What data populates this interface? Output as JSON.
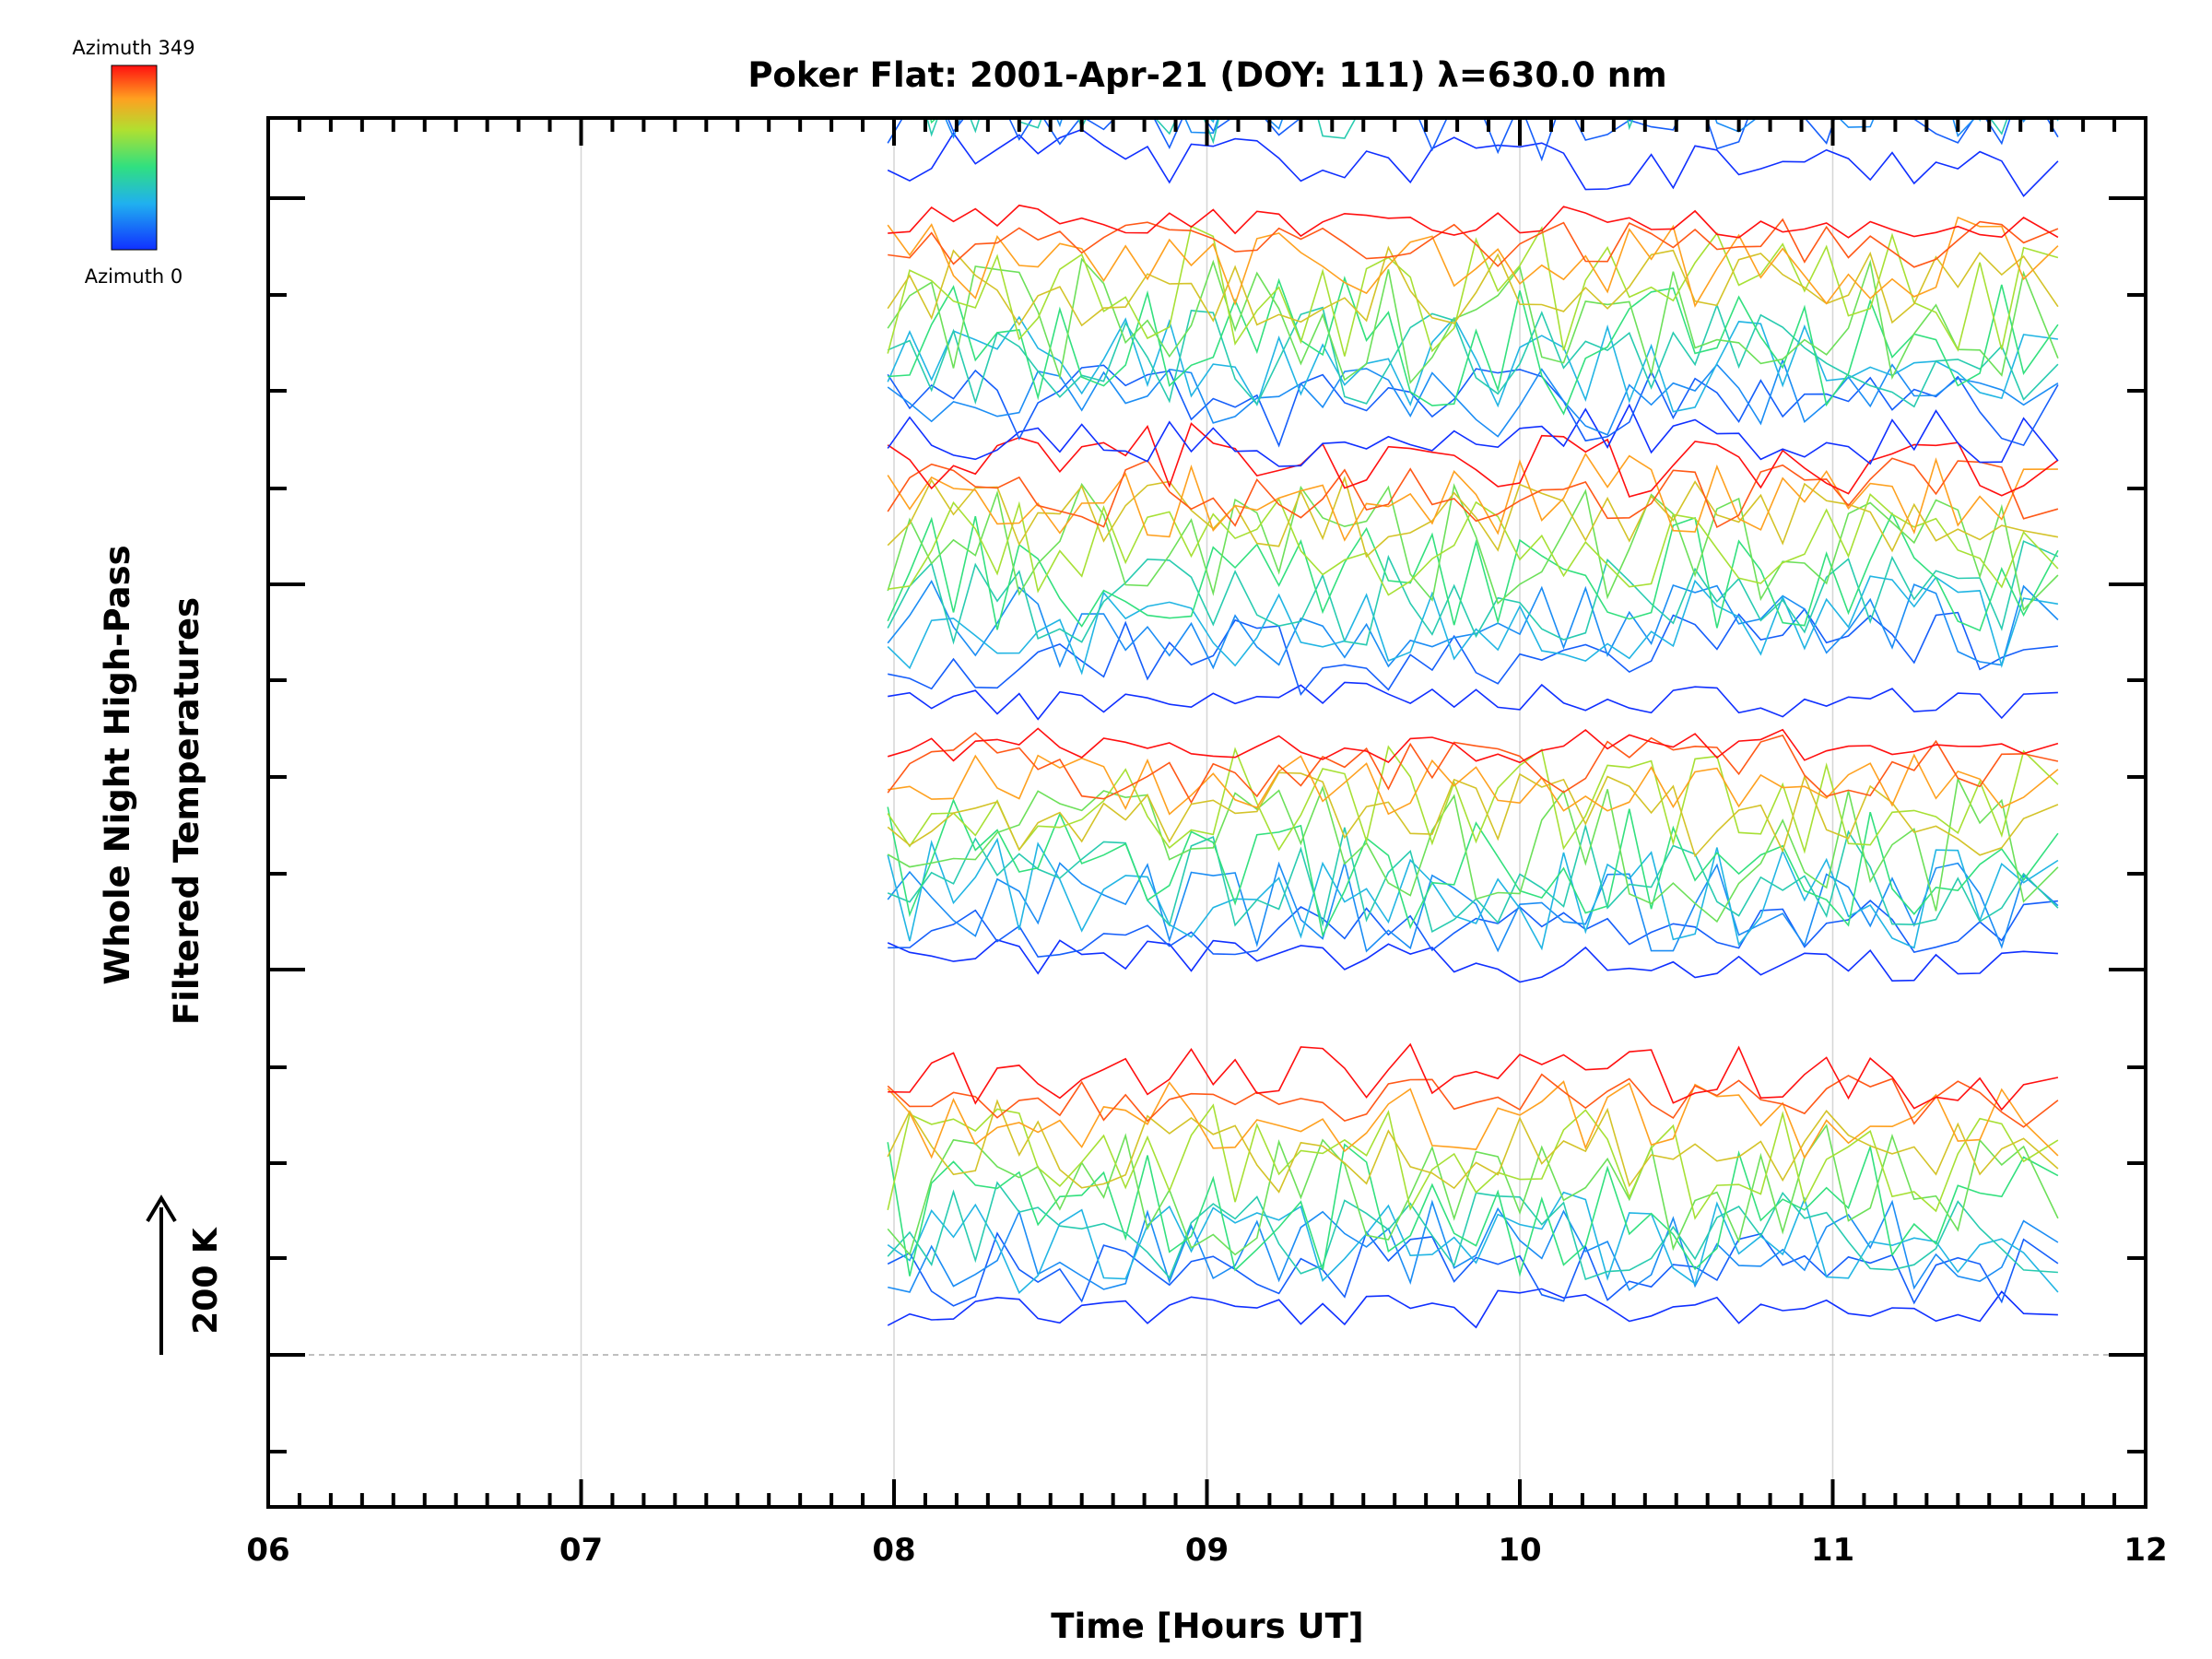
{
  "chart_data": {
    "type": "line",
    "title": "Poker Flat: 2001-Apr-21 (DOY: 111) λ=630.0 nm",
    "xlabel": "Time [Hours UT]",
    "ylabel": [
      "Whole Night High-Pass",
      "Filtered Temperatures"
    ],
    "scale_label": "200 K",
    "xlim": [
      6,
      12
    ],
    "x_ticks": [
      "06",
      "07",
      "08",
      "09",
      "10",
      "11",
      "12"
    ],
    "colorbar": {
      "top_label": "Azimuth 349",
      "bottom_label": "Azimuth 0"
    },
    "grid": "vertical at hours",
    "x": [
      7.98,
      8.05,
      8.12,
      8.19,
      8.26,
      8.33,
      8.4,
      8.46,
      8.53,
      8.6,
      8.67,
      8.74,
      8.81,
      8.88,
      8.95,
      9.02,
      9.09,
      9.16,
      9.23,
      9.3,
      9.37,
      9.44,
      9.51,
      9.58,
      9.65,
      9.72,
      9.79,
      9.86,
      9.93,
      10.0,
      10.07,
      10.14,
      10.21,
      10.28,
      10.35,
      10.42,
      10.49,
      10.56,
      10.63,
      10.7,
      10.77,
      10.84,
      10.91,
      10.98,
      11.05,
      11.12,
      11.19,
      11.26,
      11.33,
      11.4,
      11.47,
      11.54,
      11.61,
      11.72
    ],
    "trace_groups": [
      {
        "baseline": 1410,
        "count": 12
      },
      {
        "baseline": 1040,
        "count": 12
      },
      {
        "baseline": 740,
        "count": 12
      },
      {
        "baseline": 470,
        "count": 12
      },
      {
        "baseline": 160,
        "count": 12
      }
    ],
    "offset_per_trace_K": 25,
    "reference_line_K": 0
  }
}
